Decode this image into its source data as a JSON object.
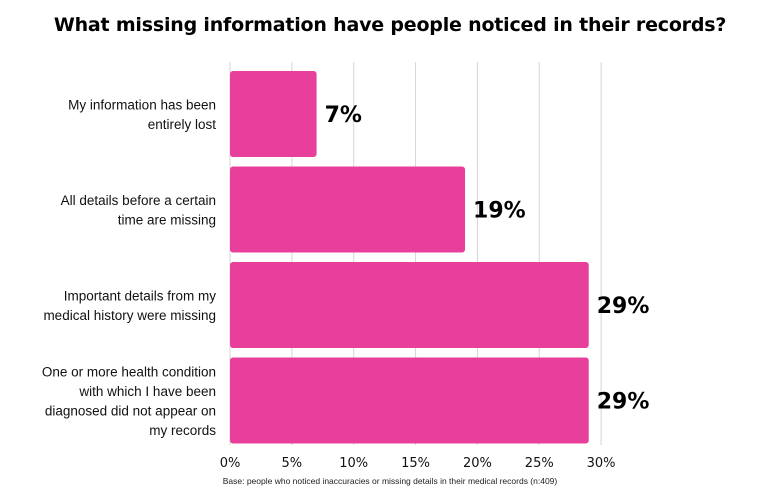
{
  "title": "What missing information have people noticed in their records?",
  "footnote": "Base: people who noticed inaccuracies or missing details in their medical records (n:409)",
  "colors": {
    "bar": "#e8409a",
    "grid": "#d6d6d6"
  },
  "chart_data": {
    "type": "bar",
    "orientation": "horizontal",
    "title": "What missing information have people noticed in their records?",
    "categories": [
      [
        "My information has been",
        "entirely lost"
      ],
      [
        "All details before a certain",
        "time are missing"
      ],
      [
        "Important details from my",
        "medical history were missing"
      ],
      [
        "One or more health condition",
        "with which I have been",
        "diagnosed did not appear on",
        "my records"
      ]
    ],
    "values": [
      7,
      19,
      29,
      29
    ],
    "value_labels": [
      "7%",
      "19%",
      "29%",
      "29%"
    ],
    "xlim": [
      0,
      30
    ],
    "xticks": [
      0,
      5,
      10,
      15,
      20,
      25,
      30
    ],
    "xtick_labels": [
      "0%",
      "5%",
      "10%",
      "15%",
      "20%",
      "25%",
      "30%"
    ],
    "grid": true,
    "legend": "none"
  }
}
